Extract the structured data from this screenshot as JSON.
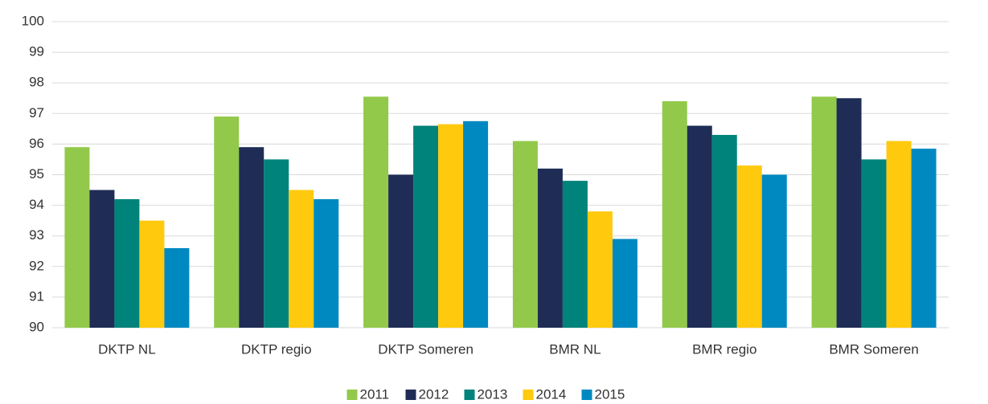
{
  "chart_data": {
    "type": "bar",
    "categories": [
      "DKTP NL",
      "DKTP regio",
      "DKTP Someren",
      "BMR NL",
      "BMR regio",
      "BMR Someren"
    ],
    "series": [
      {
        "name": "2011",
        "color": "#92c94a",
        "values": [
          95.9,
          96.9,
          97.55,
          96.1,
          97.4,
          97.55
        ]
      },
      {
        "name": "2012",
        "color": "#1f2d56",
        "values": [
          94.5,
          95.9,
          95.0,
          95.2,
          96.6,
          97.5
        ]
      },
      {
        "name": "2013",
        "color": "#00837b",
        "values": [
          94.2,
          95.5,
          96.6,
          94.8,
          96.3,
          95.5
        ]
      },
      {
        "name": "2014",
        "color": "#ffc90e",
        "values": [
          93.5,
          94.5,
          96.65,
          93.8,
          95.3,
          96.1
        ]
      },
      {
        "name": "2015",
        "color": "#0089c0",
        "values": [
          92.6,
          94.2,
          96.75,
          92.9,
          95.0,
          95.85
        ]
      }
    ],
    "ylim": [
      90,
      100
    ],
    "yticks": [
      90,
      91,
      92,
      93,
      94,
      95,
      96,
      97,
      98,
      99,
      100
    ],
    "grid": true
  }
}
